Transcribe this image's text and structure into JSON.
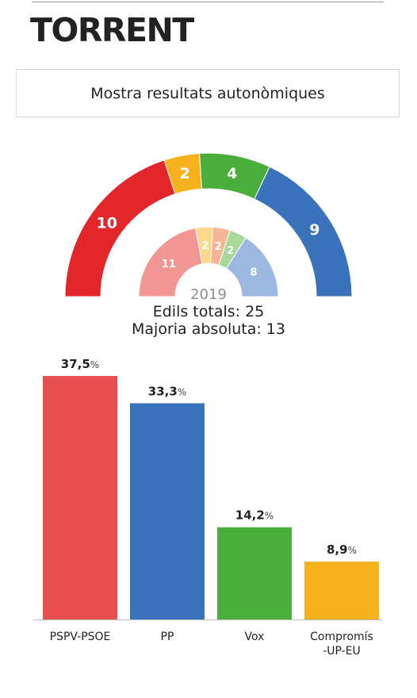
{
  "header": {
    "town": "TORRENT",
    "toggle_label": "Mostra resultats autonòmiques"
  },
  "summary": {
    "year": "2019",
    "total_line": "Edils totals: 25",
    "majority_line": "Majoria absoluta: 13"
  },
  "chart_data": [
    {
      "type": "pie",
      "subtype": "hemicycle",
      "categories": [
        "PSPV-PSOE",
        "Compromís-UP-EU",
        "Vox",
        "PP"
      ],
      "values": [
        10,
        2,
        4,
        9
      ],
      "colors": [
        "#e3262a",
        "#f6b21c",
        "#4aaf3a",
        "#3a72bc"
      ],
      "total": 25
    },
    {
      "type": "pie",
      "subtype": "hemicycle",
      "label": "2019",
      "values": [
        11,
        2,
        2,
        2,
        8
      ],
      "colors": [
        "#f19595",
        "#fad88c",
        "#f5b596",
        "#a8d89a",
        "#9db8e0"
      ]
    },
    {
      "type": "bar",
      "categories": [
        "PSPV-PSOE",
        "PP",
        "Vox",
        "Compromís -UP-EU"
      ],
      "category_lines": [
        [
          "PSPV-PSOE"
        ],
        [
          "PP"
        ],
        [
          "Vox"
        ],
        [
          "Compromís",
          "-UP-EU"
        ]
      ],
      "values": [
        37.5,
        33.3,
        14.2,
        8.9
      ],
      "value_labels": [
        "37,5",
        "33,3",
        "14,2",
        "8,9"
      ],
      "unit": "%",
      "colors": [
        "#e85050",
        "#3a72bc",
        "#4aaf3a",
        "#f6b21c"
      ],
      "ylim": [
        0,
        37.5
      ]
    }
  ]
}
